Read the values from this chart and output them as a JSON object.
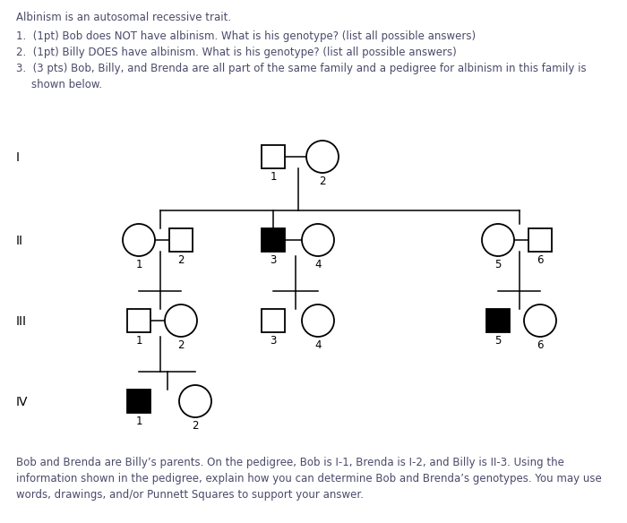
{
  "title_text": "Albinism is an autosomal recessive trait.",
  "q1": "1.  (1pt) Bob does NOT have albinism. What is his genotype? (list all possible answers)",
  "q2": "2.  (1pt) Billy DOES have albinism. What is his genotype? (list all possible answers)",
  "q3a": "3.  (3 pts) Bob, Billy, and Brenda are all part of the same family and a pedigree for albinism in this family is",
  "q3b": "    shown below.",
  "footer1": "Bob and Brenda are Billy’s parents. On the pedigree, Bob is I-1, Brenda is I-2, and Billy is II-3. Using the",
  "footer2": "information shown in the pedigree, explain how you can determine Bob and Brenda’s genotypes. You may use",
  "footer3": "words, drawings, and/or Punnett Squares to support your answer.",
  "bg_color": "#ffffff",
  "text_color": "#4a4a6a",
  "font_size": 8.5,
  "gen_label_fontsize": 10,
  "num_label_fontsize": 8.5
}
